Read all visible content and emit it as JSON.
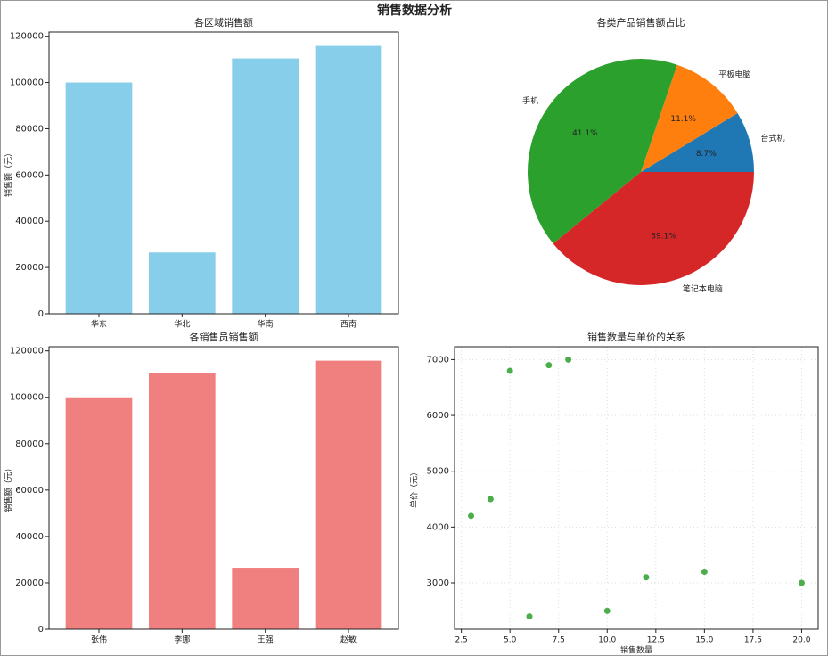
{
  "title": "销售数据分析",
  "chart_data": [
    {
      "type": "bar",
      "title": "各区域销售额",
      "ylabel": "销售额（元）",
      "categories": [
        "华东",
        "华北",
        "华南",
        "西南"
      ],
      "values": [
        100000,
        26500,
        110400,
        115800
      ],
      "color": "#87ceeb",
      "ylim": [
        0,
        121800
      ],
      "yticks": [
        0,
        20000,
        40000,
        60000,
        80000,
        100000,
        120000
      ],
      "grid": false
    },
    {
      "type": "pie",
      "title": "各类产品销售额占比",
      "categories": [
        "台式机",
        "平板电脑",
        "手机",
        "笔记本电脑"
      ],
      "values": [
        8.7,
        11.1,
        41.1,
        39.1
      ],
      "value_labels": [
        "8.7%",
        "11.1%",
        "41.1%",
        "39.1%"
      ],
      "colors": [
        "#1f77b4",
        "#ff7f0e",
        "#2ca02c",
        "#d62728"
      ]
    },
    {
      "type": "bar",
      "title": "各销售员销售额",
      "ylabel": "销售额（元）",
      "categories": [
        "张伟",
        "李娜",
        "王强",
        "赵敏"
      ],
      "values": [
        100000,
        110400,
        26500,
        115800
      ],
      "color": "#f08080",
      "ylim": [
        0,
        121800
      ],
      "yticks": [
        0,
        20000,
        40000,
        60000,
        80000,
        100000,
        120000
      ],
      "grid": false
    },
    {
      "type": "scatter",
      "title": "销售数量与单价的关系",
      "xlabel": "销售数量",
      "ylabel": "单价（元）",
      "x": [
        3,
        4,
        5,
        6,
        7,
        8,
        10,
        12,
        15,
        20
      ],
      "values": [
        4200,
        4500,
        6800,
        2400,
        6900,
        7000,
        2500,
        3100,
        3200,
        3000
      ],
      "color": "#2ca02c",
      "xlim": [
        2.15,
        20.85
      ],
      "ylim": [
        2170,
        7230
      ],
      "xticks": [
        2.5,
        {
          "value": 5,
          "label": "5.0"
        },
        7.5,
        {
          "value": 10,
          "label": "10.0"
        },
        12.5,
        {
          "value": 15,
          "label": "15.0"
        },
        17.5,
        {
          "value": 20,
          "label": "20.0"
        }
      ],
      "yticks": [
        3000,
        4000,
        5000,
        6000,
        7000
      ],
      "grid": true
    }
  ]
}
